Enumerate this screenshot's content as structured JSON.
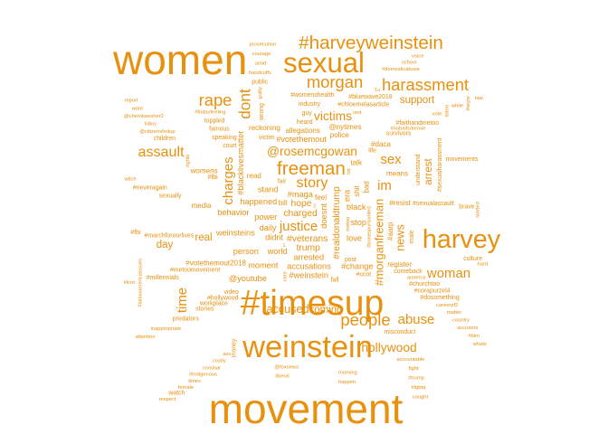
{
  "chart_data": {
    "type": "wordcloud",
    "color": "#e8910f",
    "words": [
      {
        "text": "women",
        "weight": 40
      },
      {
        "text": "movement",
        "weight": 40
      },
      {
        "text": "#timesup",
        "weight": 34
      },
      {
        "text": "weinstein",
        "weight": 30
      },
      {
        "text": "sexual",
        "weight": 27
      },
      {
        "text": "harvey",
        "weight": 25
      },
      {
        "text": "#harveyweinstein",
        "weight": 18
      },
      {
        "text": "freeman",
        "weight": 18
      },
      {
        "text": "harassment",
        "weight": 16
      },
      {
        "text": "morgan",
        "weight": 16
      },
      {
        "text": "people",
        "weight": 16
      },
      {
        "text": "rape",
        "weight": 16
      },
      {
        "text": "dont",
        "weight": 15
      },
      {
        "text": "story",
        "weight": 14
      },
      {
        "text": "assault",
        "weight": 14
      },
      {
        "text": "woman",
        "weight": 13
      },
      {
        "text": "time",
        "weight": 13
      },
      {
        "text": "charges",
        "weight": 13
      },
      {
        "text": "sex",
        "weight": 13
      },
      {
        "text": "justice",
        "weight": 13
      },
      {
        "text": "im",
        "weight": 13
      },
      {
        "text": "abuse",
        "weight": 13
      },
      {
        "text": "hollywood",
        "weight": 12
      },
      {
        "text": "victims",
        "weight": 12
      },
      {
        "text": "@rosemcgowan",
        "weight": 12
      },
      {
        "text": "accused",
        "weight": 11
      },
      {
        "text": "#morganfreeman",
        "weight": 11
      },
      {
        "text": "news",
        "weight": 11
      },
      {
        "text": "support",
        "weight": 10
      },
      {
        "text": "day",
        "weight": 10
      },
      {
        "text": "real",
        "weight": 10
      },
      {
        "text": "arrest",
        "weight": 10
      },
      {
        "text": "coming",
        "weight": 10
      },
      {
        "text": "charged",
        "weight": 9
      },
      {
        "text": "hope",
        "weight": 9
      },
      {
        "text": "#veterans",
        "weight": 9
      },
      {
        "text": "#realdonaldtrump",
        "weight": 9
      },
      {
        "text": "trump",
        "weight": 9
      },
      {
        "text": "#maga",
        "weight": 8
      },
      {
        "text": "didnt",
        "weight": 8
      },
      {
        "text": "daily",
        "weight": 8
      },
      {
        "text": "power",
        "weight": 8
      },
      {
        "text": "arrested",
        "weight": 8
      },
      {
        "text": "doesnt",
        "weight": 8
      },
      {
        "text": "happened",
        "weight": 8
      },
      {
        "text": "accusations",
        "weight": 8
      },
      {
        "text": "world",
        "weight": 8
      },
      {
        "text": "stand",
        "weight": 8
      },
      {
        "text": "black",
        "weight": 8
      },
      {
        "text": "stop",
        "weight": 8
      },
      {
        "text": "era",
        "weight": 8
      },
      {
        "text": "#weinstein",
        "weight": 8
      },
      {
        "text": "moment",
        "weight": 8
      },
      {
        "text": "love",
        "weight": 8
      },
      {
        "text": "person",
        "weight": 8
      },
      {
        "text": "weinsteins",
        "weight": 8
      },
      {
        "text": "behavior",
        "weight": 8
      },
      {
        "text": "#blacklivesmatter",
        "weight": 8
      },
      {
        "text": "#change",
        "weight": 8
      },
      {
        "text": "@youtube",
        "weight": 8
      },
      {
        "text": "#votethemout",
        "weight": 8
      },
      {
        "text": "#votethemout2018",
        "weight": 7
      },
      {
        "text": "read",
        "weight": 7
      },
      {
        "text": "feel",
        "weight": 7
      },
      {
        "text": "shit",
        "weight": 7
      },
      {
        "text": "#resist",
        "weight": 7
      },
      {
        "text": "talk",
        "weight": 7
      },
      {
        "text": "media",
        "weight": 7
      },
      {
        "text": "allegations",
        "weight": 7
      },
      {
        "text": "bill",
        "weight": 7
      },
      {
        "text": "police",
        "weight": 7
      },
      {
        "text": "bad",
        "weight": 7
      },
      {
        "text": "means",
        "weight": 7
      },
      {
        "text": "register",
        "weight": 7
      },
      {
        "text": "womens",
        "weight": 7
      },
      {
        "text": "reckoning",
        "weight": 7
      },
      {
        "text": "@nytimes",
        "weight": 7
      },
      {
        "text": "#daca",
        "weight": 7
      },
      {
        "text": "#aarp",
        "weight": 7
      },
      {
        "text": "fair",
        "weight": 6
      },
      {
        "text": "comeback",
        "weight": 6
      },
      {
        "text": "#metoomovement",
        "weight": 6
      },
      {
        "text": "#marchforourlives",
        "weight": 6
      },
      {
        "text": "#sexualassault",
        "weight": 6
      },
      {
        "text": "#hollywood",
        "weight": 6
      },
      {
        "text": "#bonespursunited",
        "weight": 5
      },
      {
        "text": "speaking",
        "weight": 6
      },
      {
        "text": "workplace",
        "weight": 6
      },
      {
        "text": "post",
        "weight": 6
      },
      {
        "text": "fall",
        "weight": 6
      },
      {
        "text": "sexually",
        "weight": 6
      },
      {
        "text": "famous",
        "weight": 6
      },
      {
        "text": "male",
        "weight": 6
      },
      {
        "text": "#ccot",
        "weight": 6
      },
      {
        "text": "america",
        "weight": 5
      },
      {
        "text": "industry",
        "weight": 6
      },
      {
        "text": "survivors",
        "weight": 6
      },
      {
        "text": "#churchtoo",
        "weight": 6
      },
      {
        "text": "#fbi",
        "weight": 6
      },
      {
        "text": "understand",
        "weight": 6
      },
      {
        "text": "stories",
        "weight": 6
      },
      {
        "text": "victim",
        "weight": 6
      },
      {
        "text": "toppled",
        "weight": 6
      },
      {
        "text": "#womenshealth",
        "weight": 6
      },
      {
        "text": "#chloemelasarticle",
        "weight": 6
      },
      {
        "text": "#corapurzel4",
        "weight": 6
      },
      {
        "text": "#sexualharassment",
        "weight": 6
      },
      {
        "text": "#millennials",
        "weight": 6
      },
      {
        "text": "#neveragain",
        "weight": 6
      },
      {
        "text": "#bluewave2018",
        "weight": 6
      },
      {
        "text": "#faithandmetoo",
        "weight": 6
      },
      {
        "text": "#dosomething",
        "weight": 6
      },
      {
        "text": "#noballsdonnie",
        "weight": 5
      },
      {
        "text": "metoo",
        "weight": 5
      },
      {
        "text": "#fridayfeeling",
        "weight": 5
      },
      {
        "text": "video",
        "weight": 6
      },
      {
        "text": "life",
        "weight": 6
      },
      {
        "text": "court",
        "weight": 6
      },
      {
        "text": "heard",
        "weight": 6
      },
      {
        "text": "misconduct",
        "weight": 6
      },
      {
        "text": "wrong",
        "weight": 6
      },
      {
        "text": "brave",
        "weight": 6
      },
      {
        "text": "guy",
        "weight": 6
      },
      {
        "text": "predators",
        "weight": 6
      },
      {
        "text": "children",
        "weight": 6
      },
      {
        "text": "public",
        "weight": 6
      },
      {
        "text": "movements",
        "weight": 6
      },
      {
        "text": "money",
        "weight": 6
      },
      {
        "text": "culture",
        "weight": 6
      },
      {
        "text": "#fbi",
        "weight": 6
      },
      {
        "text": "careerpf2",
        "weight": 5
      },
      {
        "text": "@foxnews",
        "weight": 5
      },
      {
        "text": "@citizensfedup",
        "weight": 5
      },
      {
        "text": "handcuffs",
        "weight": 5
      },
      {
        "text": "rights",
        "weight": 5
      },
      {
        "text": "witch",
        "weight": 5
      },
      {
        "text": "vote",
        "weight": 5
      },
      {
        "text": "matter",
        "weight": 5
      },
      {
        "text": "morning",
        "weight": 5
      },
      {
        "text": "liberal",
        "weight": 5
      },
      {
        "text": "cosby",
        "weight": 5
      },
      {
        "text": "guilty",
        "weight": 5
      },
      {
        "text": "inappropriate",
        "weight": 5
      },
      {
        "text": "#tcot",
        "weight": 5
      },
      {
        "text": "hillary",
        "weight": 4
      },
      {
        "text": "amid",
        "weight": 5
      },
      {
        "text": "country",
        "weight": 5
      },
      {
        "text": "accountable",
        "weight": 5
      },
      {
        "text": "started",
        "weight": 5
      },
      {
        "text": "happen",
        "weight": 5
      },
      {
        "text": "criminal",
        "weight": 5
      },
      {
        "text": "@cherokeesher2",
        "weight": 5
      },
      {
        "text": "isnt",
        "weight": 5
      },
      {
        "text": "hard",
        "weight": 5
      },
      {
        "text": "courage",
        "weight": 5
      },
      {
        "text": "#latinoamericaissues",
        "weight": 5
      },
      {
        "text": "#domesticabuse",
        "weight": 5
      },
      {
        "text": "white",
        "weight": 5
      },
      {
        "text": "accusers",
        "weight": 5
      },
      {
        "text": "fight",
        "weight": 5
      },
      {
        "text": "#indigenous",
        "weight": 5
      },
      {
        "text": "attention",
        "weight": 5
      },
      {
        "text": "listen",
        "weight": 5
      },
      {
        "text": "wont",
        "weight": 5
      },
      {
        "text": "prosecution",
        "weight": 5
      },
      {
        "text": "school",
        "weight": 5
      },
      {
        "text": "#bim",
        "weight": 5
      },
      {
        "text": "#trump",
        "weight": 5
      },
      {
        "text": "times",
        "weight": 5
      },
      {
        "text": "theyre",
        "weight": 5
      },
      {
        "text": "report",
        "weight": 5
      },
      {
        "text": "voice",
        "weight": 5
      },
      {
        "text": "law",
        "weight": 5
      },
      {
        "text": "whats",
        "weight": 5
      },
      {
        "text": "#lgbtq",
        "weight": 5
      },
      {
        "text": "female",
        "weight": 5
      },
      {
        "text": "speak",
        "weight": 5
      },
      {
        "text": "caught",
        "weight": 5
      },
      {
        "text": "watch",
        "weight": 6
      },
      {
        "text": "respect",
        "weight": 5
      },
      {
        "text": "fucking",
        "weight": 5
      },
      {
        "text": "york",
        "weight": 5
      },
      {
        "text": "makes",
        "weight": 5
      },
      {
        "text": "care",
        "weight": 5
      },
      {
        "text": "innocent",
        "weight": 5
      },
      {
        "text": "president",
        "weight": 5
      },
      {
        "text": "#news",
        "weight": 5
      },
      {
        "text": "days",
        "weight": 5
      },
      {
        "text": "remember",
        "weight": 5
      },
      {
        "text": "gender",
        "weight": 5
      },
      {
        "text": "step",
        "weight": 5
      },
      {
        "text": "takei",
        "weight": 5
      },
      {
        "text": "hey",
        "weight": 5
      },
      {
        "text": "decades",
        "weight": 5
      },
      {
        "text": "talking",
        "weight": 5
      },
      {
        "text": "god",
        "weight": 5
      },
      {
        "text": "truth",
        "weight": 5
      },
      {
        "text": "guys",
        "weight": 5
      },
      {
        "text": "harassed",
        "weight": 5
      },
      {
        "text": "hear",
        "weight": 5
      },
      {
        "text": "check",
        "weight": 5
      },
      {
        "text": "ago",
        "weight": 5
      },
      {
        "text": "taking",
        "weight": 5
      },
      {
        "text": "happy",
        "weight": 5
      },
      {
        "text": "friday",
        "weight": 5
      },
      {
        "text": "#justice",
        "weight": 5
      },
      {
        "text": "wasnt",
        "weight": 5
      },
      {
        "text": "clinton",
        "weight": 5
      },
      {
        "text": "crimes",
        "weight": 5
      },
      {
        "text": "metoo",
        "weight": 5
      },
      {
        "text": "ass",
        "weight": 5
      },
      {
        "text": "#resist",
        "weight": 5
      },
      {
        "text": "sick",
        "weight": 5
      },
      {
        "text": "brought",
        "weight": 5
      },
      {
        "text": "2018",
        "weight": 5
      },
      {
        "text": "claims",
        "weight": 5
      },
      {
        "text": "@asiaargento",
        "weight": 5
      },
      {
        "text": "social",
        "weight": 5
      },
      {
        "text": "perp",
        "weight": 5
      },
      {
        "text": "walk",
        "weight": 5
      },
      {
        "text": "#women",
        "weight": 5
      },
      {
        "text": "powerful",
        "weight": 5
      },
      {
        "text": "rose",
        "weight": 5
      },
      {
        "text": "fuck",
        "weight": 5
      },
      {
        "text": "#start",
        "weight": 5
      },
      {
        "text": "lot",
        "weight": 5
      },
      {
        "text": "#abused",
        "weight": 5
      },
      {
        "text": "4@amazinmikey",
        "weight": 5
      },
      {
        "text": "girls",
        "weight": 5
      },
      {
        "text": "1u",
        "weight": 5
      },
      {
        "text": "2",
        "weight": 5
      },
      {
        "text": "nice",
        "weight": 5
      },
      {
        "text": "job",
        "weight": 5
      },
      {
        "text": "yours",
        "weight": 5
      },
      {
        "text": "lives",
        "weight": 5
      },
      {
        "text": "actors",
        "weight": 5
      },
      {
        "text": "call",
        "weight": 5
      },
      {
        "text": "consent",
        "weight": 5
      },
      {
        "text": "reporting",
        "weight": 5
      },
      {
        "text": "comments",
        "weight": 5
      },
      {
        "text": "actions",
        "weight": 5
      },
      {
        "text": "human",
        "weight": 5
      },
      {
        "text": "free",
        "weight": 5
      },
      {
        "text": "boy",
        "weight": 5
      },
      {
        "text": "movie",
        "weight": 5
      },
      {
        "text": "george",
        "weight": 5
      },
      {
        "text": "assaulted",
        "weight": 5
      },
      {
        "text": "sad",
        "weight": 5
      },
      {
        "text": "violence",
        "weight": 5
      },
      {
        "text": "change",
        "weight": 5
      },
      {
        "text": "piece",
        "weight": 5
      },
      {
        "text": "family",
        "weight": 5
      },
      {
        "text": "light",
        "weight": 5
      },
      {
        "text": "true",
        "weight": 5
      },
      {
        "text": "found",
        "weight": 5
      },
      {
        "text": "gladjoin",
        "weight": 5
      },
      {
        "text": "1",
        "weight": 5
      },
      {
        "text": "live",
        "weight": 5
      },
      {
        "text": "months",
        "weight": 5
      },
      {
        "text": "society",
        "weight": 5
      }
    ]
  }
}
